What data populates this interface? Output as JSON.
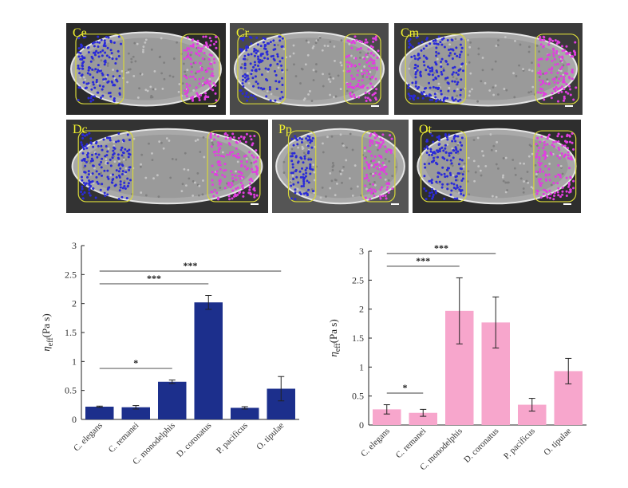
{
  "panels": [
    {
      "label": "Ce",
      "blue": [
        0.06,
        0.36
      ],
      "magenta": [
        0.72,
        0.96
      ],
      "bg": "#2a2a2a"
    },
    {
      "label": "Cr",
      "blue": [
        0.05,
        0.35
      ],
      "magenta": [
        0.72,
        0.95
      ],
      "bg": "#4a4a4a"
    },
    {
      "label": "Cm",
      "blue": [
        0.06,
        0.38
      ],
      "magenta": [
        0.75,
        0.98
      ],
      "bg": "#3a3a3a"
    },
    {
      "label": "Dc",
      "blue": [
        0.06,
        0.33
      ],
      "magenta": [
        0.7,
        0.96
      ],
      "bg": "#333333"
    },
    {
      "label": "Pp",
      "blue": [
        0.12,
        0.32
      ],
      "magenta": [
        0.66,
        0.9
      ],
      "bg": "#555555"
    },
    {
      "label": "Ot",
      "blue": [
        0.05,
        0.32
      ],
      "magenta": [
        0.72,
        0.97
      ],
      "bg": "#2e2e2e"
    }
  ],
  "colors": {
    "blue_bar": "#1c2f8c",
    "pink_bar": "#f7a6cc",
    "dot_blue": "#2a2ad8",
    "dot_magenta": "#e13ee0",
    "outline": "#d8d83a"
  },
  "chart_data": [
    {
      "type": "bar",
      "categories": [
        "C. elegans",
        "C. remanei",
        "C. monodelphis",
        "D. coronatus",
        "P. pacificus",
        "O. tipulae"
      ],
      "values": [
        0.22,
        0.21,
        0.65,
        2.02,
        0.2,
        0.53
      ],
      "errors": [
        0.01,
        0.03,
        0.03,
        0.12,
        0.02,
        0.21
      ],
      "ylabel_symbol": "η",
      "ylabel_sub": "eff",
      "ylabel_unit": "(Pa s)",
      "ylim": [
        0,
        3
      ],
      "yticks": [
        "0",
        "0.5",
        "1",
        "1.5",
        "2",
        "2.5",
        "3"
      ],
      "significance": [
        {
          "from": 0,
          "to": 2,
          "label": "*"
        },
        {
          "from": 0,
          "to": 3,
          "label": "***"
        },
        {
          "from": 0,
          "to": 5,
          "label": "***"
        }
      ]
    },
    {
      "type": "bar",
      "categories": [
        "C. elegans",
        "C. remanei",
        "C. monodelphis",
        "D. coronatus",
        "P. pacificus",
        "O. tipulae"
      ],
      "values": [
        0.27,
        0.21,
        1.97,
        1.77,
        0.35,
        0.93
      ],
      "errors": [
        0.08,
        0.06,
        0.57,
        0.44,
        0.11,
        0.22
      ],
      "ylabel_symbol": "η",
      "ylabel_sub": "eff",
      "ylabel_unit": "(Pa s)",
      "ylim": [
        0,
        3
      ],
      "yticks": [
        "0",
        "0.5",
        "1",
        "1.5",
        "2",
        "2.5",
        "3"
      ],
      "significance": [
        {
          "from": 0,
          "to": 1,
          "label": "*"
        },
        {
          "from": 0,
          "to": 2,
          "label": "***"
        },
        {
          "from": 0,
          "to": 3,
          "label": "***"
        },
        {
          "from": 0,
          "to": 5,
          "label": "***"
        }
      ]
    }
  ]
}
